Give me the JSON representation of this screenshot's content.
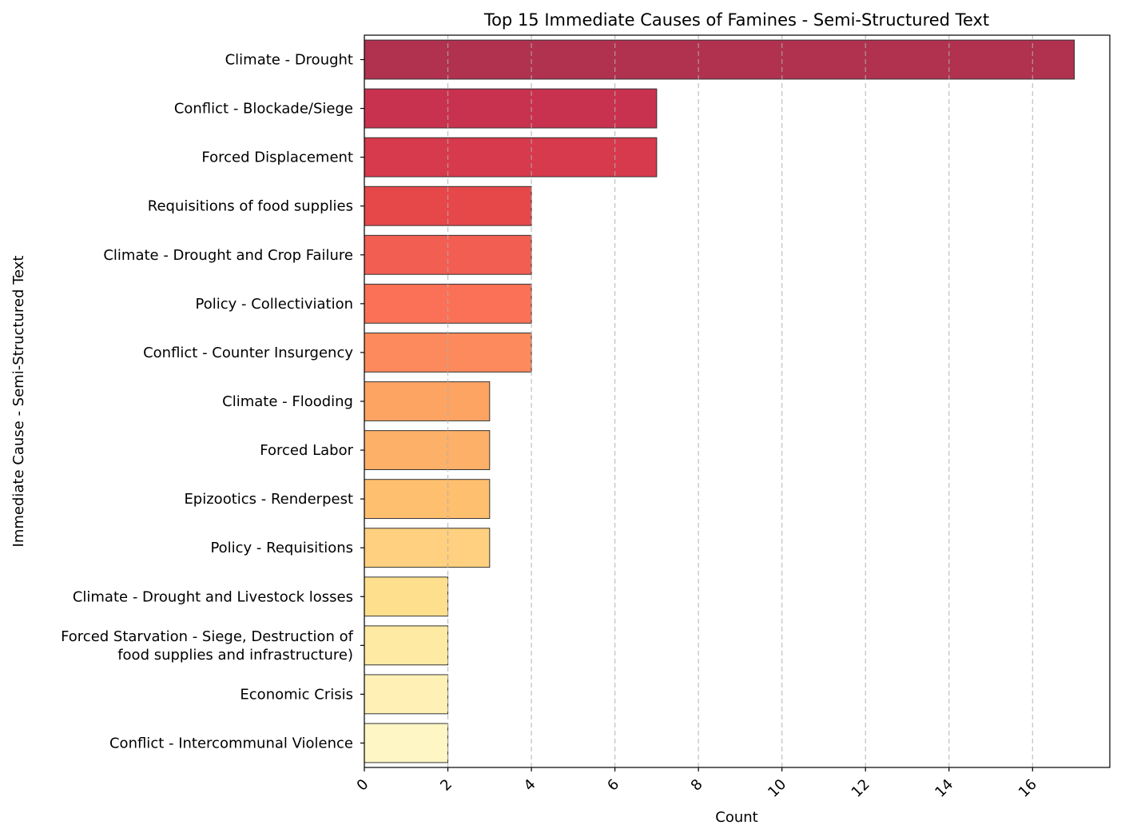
{
  "chart_data": {
    "type": "bar",
    "orientation": "horizontal",
    "title": "Top 15 Immediate Causes of Famines - Semi-Structured Text",
    "xlabel": "Count",
    "ylabel": "Immediate Cause - Semi-Structured Text",
    "xlim": [
      0,
      17.85
    ],
    "xticks": [
      0,
      2,
      4,
      6,
      8,
      10,
      12,
      14,
      16
    ],
    "grid": "x, dashed",
    "categories": [
      "Climate - Drought",
      "Conflict - Blockade/Siege",
      "Forced Displacement",
      "Requisitions of food supplies",
      "Climate - Drought and Crop Failure",
      "Policy - Collectiviation",
      "Conflict - Counter Insurgency",
      "Climate - Flooding",
      "Forced Labor",
      "Epizootics - Renderpest",
      "Policy - Requisitions",
      "Climate - Drought and Livestock losses",
      "Forced Starvation - Siege, Destruction of\nfood supplies and infrastructure)",
      "Economic Crisis",
      "Conflict - Intercommunal Violence"
    ],
    "values": [
      17,
      7,
      7,
      4,
      4,
      4,
      4,
      3,
      3,
      3,
      3,
      2,
      2,
      2,
      2
    ],
    "colors": [
      "#b0324f",
      "#c9324f",
      "#d63a4c",
      "#e6484a",
      "#f25e52",
      "#fb7157",
      "#fc8a5c",
      "#fda463",
      "#fdb068",
      "#febf6f",
      "#fed07f",
      "#fedf8d",
      "#feeaa2",
      "#fff1b6",
      "#fff6c5"
    ]
  }
}
